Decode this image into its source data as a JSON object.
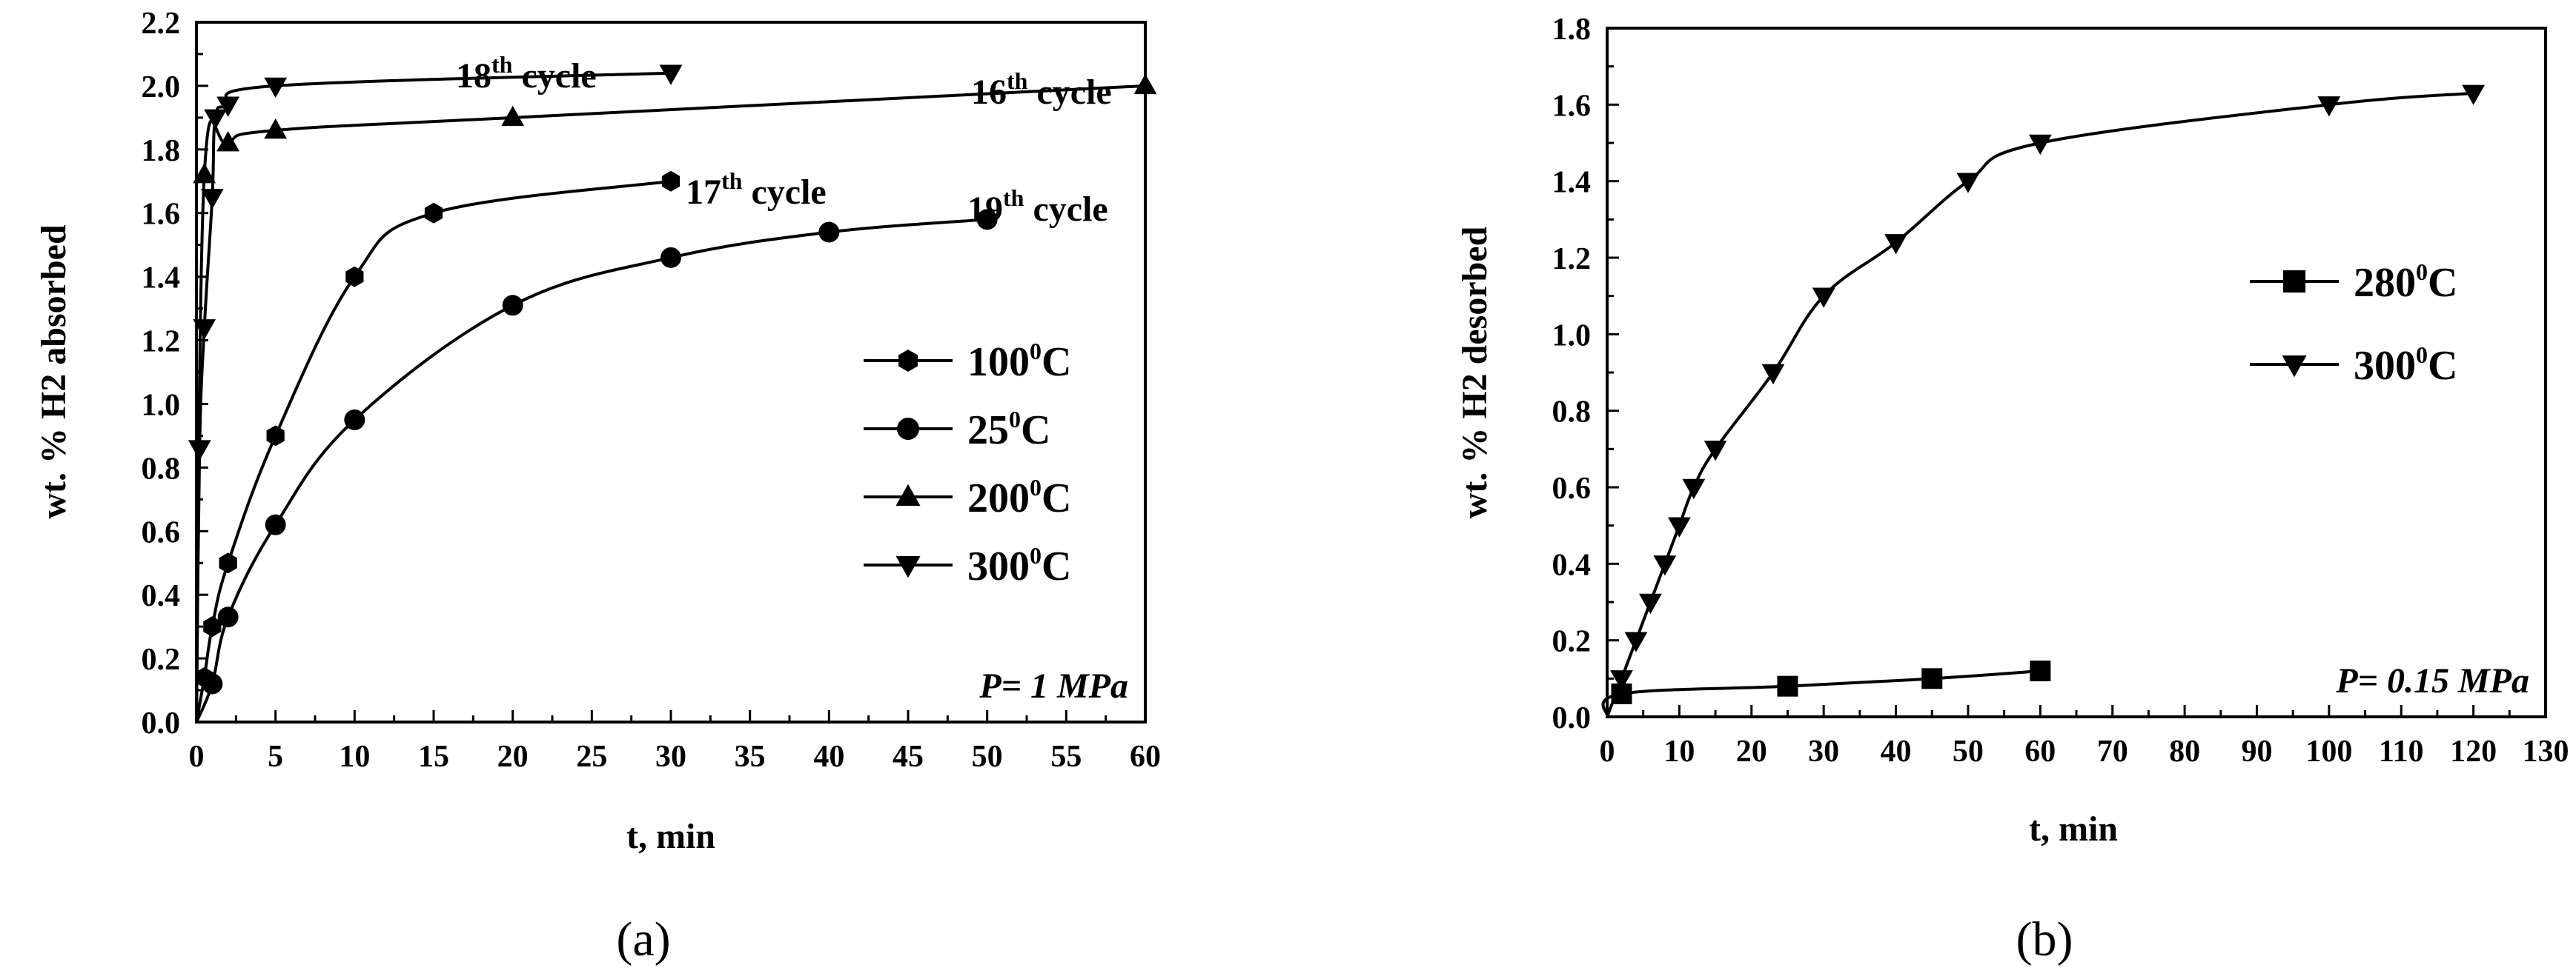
{
  "chart_data": [
    {
      "type": "scatter",
      "panel_label": "(a)",
      "xlabel": "t, min",
      "ylabel": "wt. % H2 absorbed",
      "xlim": [
        0,
        60
      ],
      "ylim": [
        0,
        2.2
      ],
      "xticks": [
        "0",
        "5",
        "10",
        "15",
        "20",
        "25",
        "30",
        "35",
        "40",
        "45",
        "50",
        "55",
        "60"
      ],
      "yticks": [
        "0.0",
        "0.2",
        "0.4",
        "0.6",
        "0.8",
        "1.0",
        "1.2",
        "1.4",
        "1.6",
        "1.8",
        "2.0",
        "2.2"
      ],
      "condition": "P= 1 MPa",
      "legend_position": "center-right",
      "annotations": [
        {
          "text": "18",
          "sup": "th",
          "suffix": " cycle"
        },
        {
          "text": "16",
          "sup": "th",
          "suffix": " cycle"
        },
        {
          "text": "17",
          "sup": "th",
          "suffix": " cycle"
        },
        {
          "text": "19",
          "sup": "th",
          "suffix": " cycle"
        }
      ],
      "series": [
        {
          "name": "100",
          "sup": "0",
          "unit": "C",
          "marker": "hexagon",
          "x": [
            0,
            0.5,
            1,
            2,
            5,
            10,
            15,
            30
          ],
          "y": [
            0.0,
            0.14,
            0.3,
            0.5,
            0.9,
            1.4,
            1.6,
            1.7
          ]
        },
        {
          "name": "25",
          "sup": "0",
          "unit": "C",
          "marker": "circle",
          "x": [
            0,
            1,
            2,
            5,
            10,
            20,
            30,
            40,
            50
          ],
          "y": [
            0.0,
            0.12,
            0.33,
            0.62,
            0.95,
            1.31,
            1.46,
            1.54,
            1.58
          ]
        },
        {
          "name": "200",
          "sup": "0",
          "unit": "C",
          "marker": "triangle-up",
          "x": [
            0,
            0.5,
            2,
            5,
            20,
            60
          ],
          "y": [
            0.0,
            1.72,
            1.82,
            1.86,
            1.9,
            2.0
          ]
        },
        {
          "name": "300",
          "sup": "0",
          "unit": "C",
          "marker": "triangle-down",
          "x": [
            0,
            0.2,
            0.5,
            1,
            1.2,
            2,
            5,
            30
          ],
          "y": [
            0.0,
            0.86,
            1.24,
            1.65,
            1.9,
            1.94,
            2.0,
            2.04
          ]
        }
      ]
    },
    {
      "type": "scatter",
      "panel_label": "(b)",
      "xlabel": "t, min",
      "ylabel": "wt. % H2 desorbed",
      "xlim": [
        0,
        130
      ],
      "ylim": [
        0,
        1.8
      ],
      "xticks": [
        "0",
        "10",
        "20",
        "30",
        "40",
        "50",
        "60",
        "70",
        "80",
        "90",
        "100",
        "110",
        "120",
        "130"
      ],
      "yticks": [
        "0.0",
        "0.2",
        "0.4",
        "0.6",
        "0.8",
        "1.0",
        "1.2",
        "1.4",
        "1.6",
        "1.8"
      ],
      "condition": "P= 0.15 MPa",
      "legend_position": "top-right",
      "series": [
        {
          "name": "280",
          "sup": "0",
          "unit": "C",
          "marker": "square",
          "x": [
            0,
            2,
            25,
            45,
            60
          ],
          "y": [
            0.0,
            0.06,
            0.08,
            0.1,
            0.12
          ]
        },
        {
          "name": "300",
          "sup": "0",
          "unit": "C",
          "marker": "triangle-down",
          "x": [
            0,
            2,
            4,
            6,
            8,
            10,
            12,
            15,
            23,
            30,
            40,
            50,
            60,
            100,
            120
          ],
          "y": [
            0.0,
            0.1,
            0.2,
            0.3,
            0.4,
            0.5,
            0.6,
            0.7,
            0.9,
            1.1,
            1.24,
            1.4,
            1.5,
            1.6,
            1.63
          ]
        }
      ]
    }
  ]
}
